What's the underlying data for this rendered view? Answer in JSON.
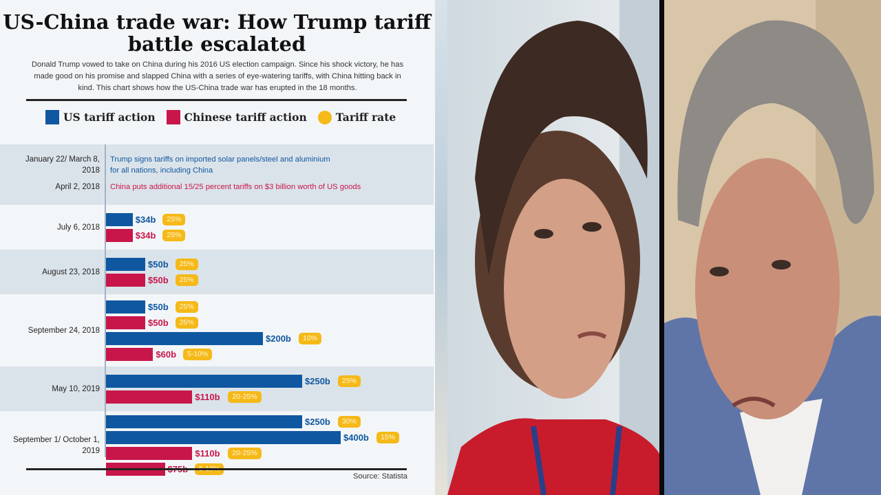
{
  "title": "US-China trade war: How Trump tariff battle escalated",
  "intro": "Donald Trump vowed to take on China during his 2016 US election campaign. Since his shock victory, he has made good on his promise and slapped China with a series of eye-watering tariffs, with China hitting back in kind. This chart shows how the US-China trade war has erupted in the 18 months.",
  "legend": [
    {
      "label": "US tariff action",
      "color": "#0f57a0"
    },
    {
      "label": "Chinese tariff action",
      "color": "#c8164a"
    },
    {
      "label": "Tariff rate",
      "color": "#f5b918"
    }
  ],
  "source": "Source: Statista",
  "chart_data": {
    "type": "bar",
    "orientation": "horizontal",
    "title": "US-China trade war: How Trump tariff battle escalated",
    "notes": [
      {
        "date": "January 22/ March 8, 2018",
        "text": "Trump signs tariffs on imported solar panels/steel and aluminium for all nations, including China",
        "side": "US"
      },
      {
        "date": "April 2, 2018",
        "text": "China puts additional 15/25 percent tariffs on $3 billion worth of US goods",
        "side": "China"
      }
    ],
    "groups": [
      {
        "date": "July 6, 2018",
        "bars": [
          {
            "side": "US",
            "value": 34,
            "label": "$34b",
            "rate": "25%"
          },
          {
            "side": "China",
            "value": 34,
            "label": "$34b",
            "rate": "25%"
          }
        ]
      },
      {
        "date": "August 23, 2018",
        "bars": [
          {
            "side": "US",
            "value": 50,
            "label": "$50b",
            "rate": "25%"
          },
          {
            "side": "China",
            "value": 50,
            "label": "$50b",
            "rate": "25%"
          }
        ]
      },
      {
        "date": "September 24, 2018",
        "bars": [
          {
            "side": "US",
            "value": 50,
            "label": "$50b",
            "rate": "25%"
          },
          {
            "side": "China",
            "value": 50,
            "label": "$50b",
            "rate": "25%"
          },
          {
            "side": "US",
            "value": 200,
            "label": "$200b",
            "rate": "10%"
          },
          {
            "side": "China",
            "value": 60,
            "label": "$60b",
            "rate": "5-10%"
          }
        ]
      },
      {
        "date": "May 10, 2019",
        "bars": [
          {
            "side": "US",
            "value": 250,
            "label": "$250b",
            "rate": "25%"
          },
          {
            "side": "China",
            "value": 110,
            "label": "$110b",
            "rate": "20-25%"
          }
        ]
      },
      {
        "date": "September 1/ October 1, 2019",
        "bars": [
          {
            "side": "US",
            "value": 250,
            "label": "$250b",
            "rate": "30%"
          },
          {
            "side": "US",
            "value": 400,
            "label": "$400b",
            "rate": "15%"
          },
          {
            "side": "China",
            "value": 110,
            "label": "$110b",
            "rate": "20-25%"
          },
          {
            "side": "China",
            "value": 75,
            "label": "$75b",
            "rate": "5-10%"
          }
        ]
      }
    ]
  }
}
